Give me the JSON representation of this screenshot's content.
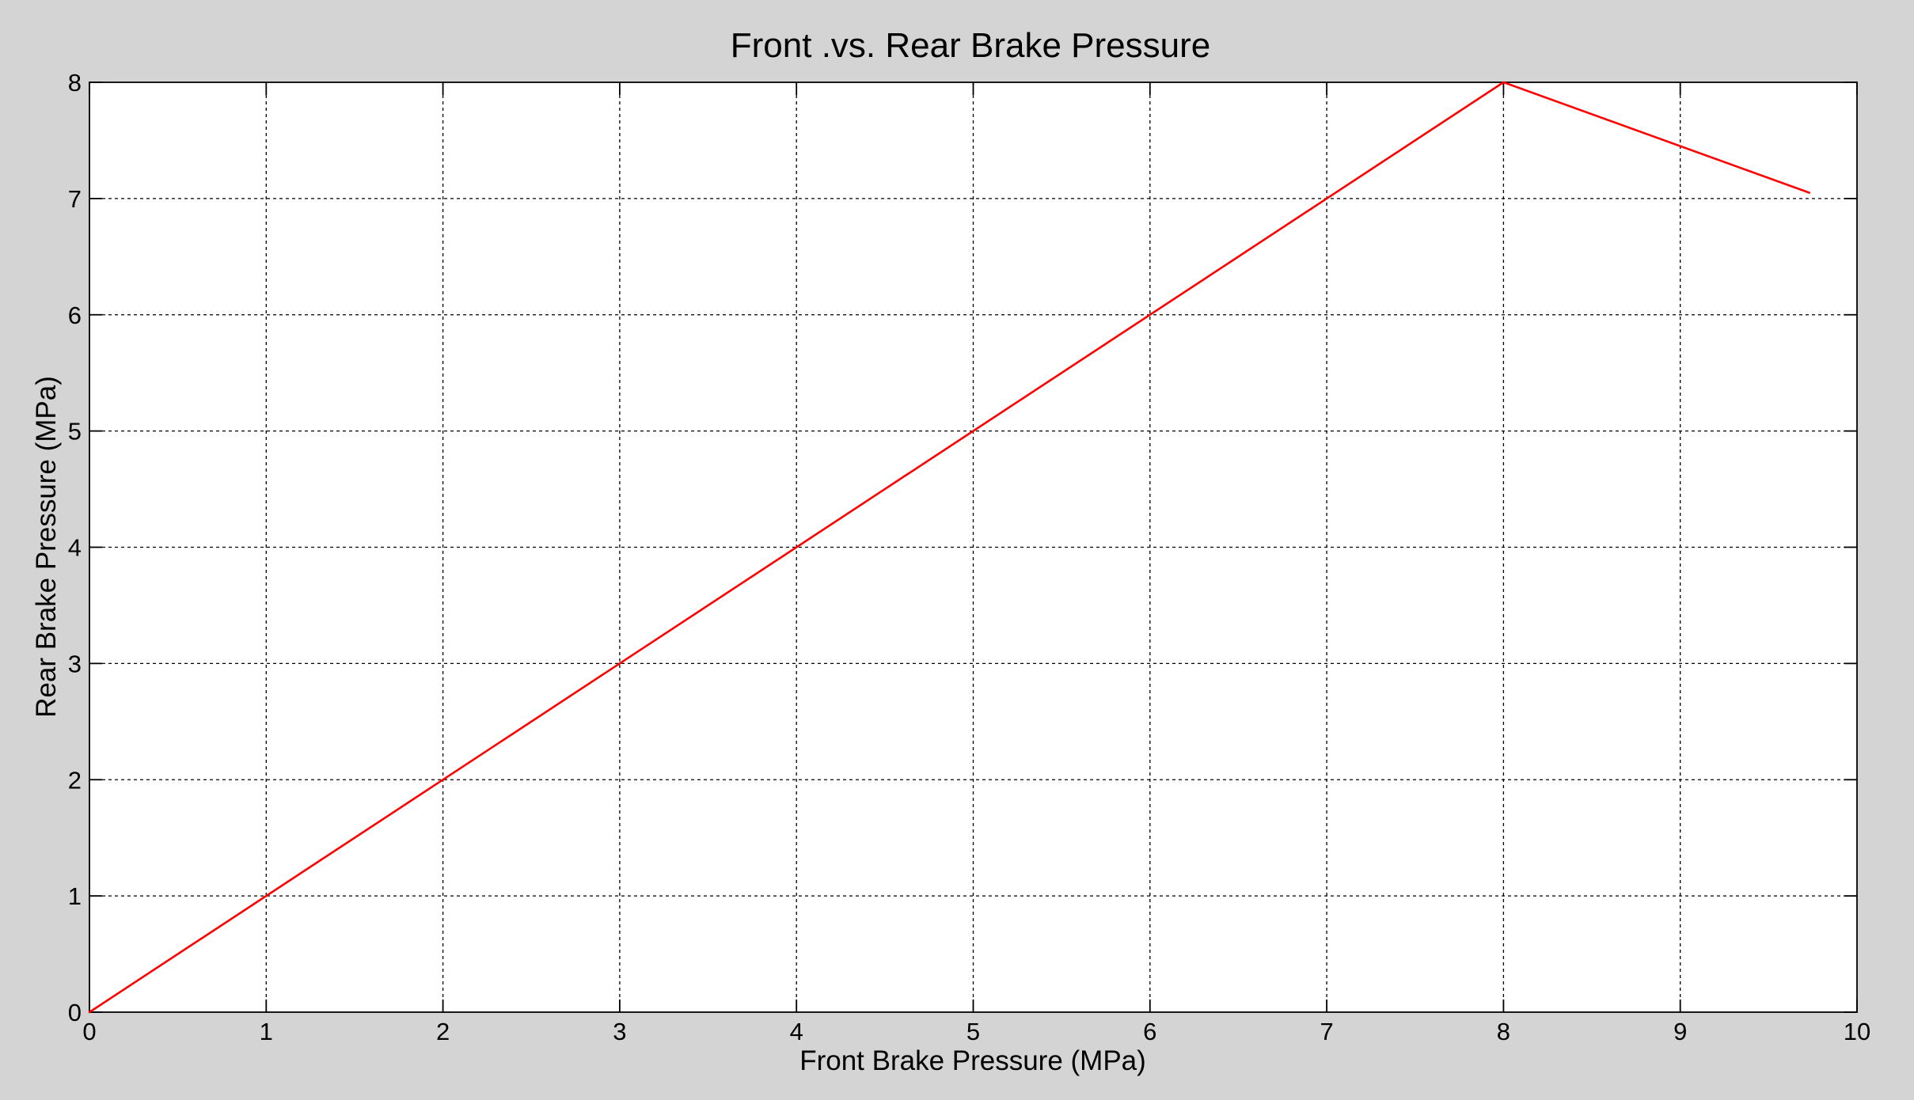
{
  "chart_data": {
    "type": "line",
    "title": "Front .vs. Rear Brake Pressure",
    "xlabel": "Front Brake Pressure (MPa)",
    "ylabel": "Rear Brake Pressure (MPa)",
    "xlim": [
      0,
      10
    ],
    "ylim": [
      0,
      8
    ],
    "xticks": [
      "0",
      "1",
      "2",
      "3",
      "4",
      "5",
      "6",
      "7",
      "8",
      "9",
      "10"
    ],
    "yticks": [
      "0",
      "1",
      "2",
      "3",
      "4",
      "5",
      "6",
      "7",
      "8"
    ],
    "grid": true,
    "series": [
      {
        "color": "#ff0000",
        "x": [
          0,
          8,
          9.73
        ],
        "y": [
          0,
          8,
          7.05
        ]
      }
    ]
  }
}
